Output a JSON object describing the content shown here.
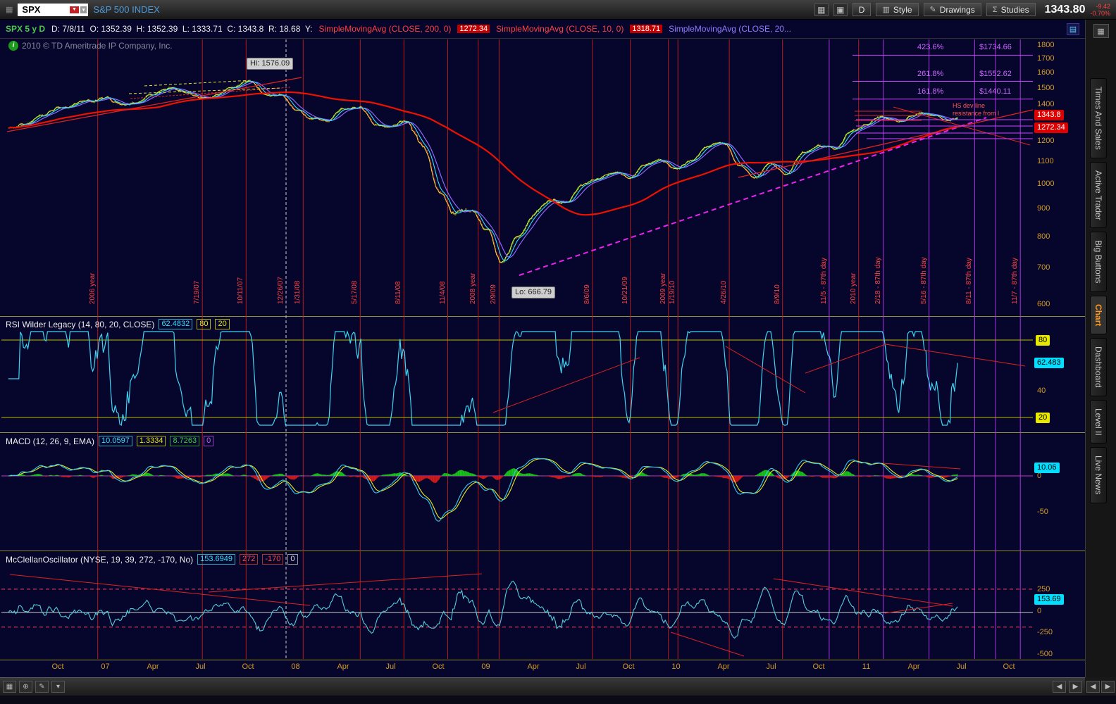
{
  "title_bar": {
    "symbol": "SPX",
    "title": "S&P 500 INDEX",
    "buttons": {
      "d": "D",
      "style": "Style",
      "drawings": "Drawings",
      "studies": "Studies"
    },
    "price": "1343.80",
    "change": "-9.42",
    "change_pct": "-0.70%"
  },
  "info_bar": {
    "symbol_period": "SPX 5 y D",
    "ohlc": "D: 7/8/11  O: 1352.39  H: 1352.39  L: 1333.71  C: 1343.8  R: 18.68  Y:"
  },
  "watermark": "2010 © TD Ameritrade IP Company, Inc.",
  "annotations": {
    "note1": "HS dev line",
    "note2": "resistance from l"
  },
  "sidebar": {
    "tabs": [
      "Times And Sales",
      "Active Trader",
      "Big Buttons",
      "Chart",
      "Dashboard",
      "Level II",
      "Live News"
    ],
    "active_tab": "Chart"
  },
  "chart_data": {
    "type": "candlestick",
    "symbol": "SPX",
    "timeframe": "5 y D",
    "y_axis": {
      "scale": "log",
      "ticks": [
        1800,
        1700,
        1600,
        1500,
        1400,
        1200,
        1100,
        1000,
        900,
        800,
        700,
        600
      ]
    },
    "x_axis": {
      "labels": [
        "Oct",
        "07",
        "Apr",
        "Jul",
        "Oct",
        "08",
        "Apr",
        "Jul",
        "Oct",
        "09",
        "Apr",
        "Jul",
        "Oct",
        "10",
        "Apr",
        "Jul",
        "Oct",
        "11",
        "Apr",
        "Jul",
        "Oct"
      ]
    },
    "price": {
      "t_start": 2006.542,
      "monthly_closes": [
        1276,
        1303,
        1335,
        1377,
        1400,
        1418,
        1438,
        1406,
        1420,
        1482,
        1530,
        1503,
        1455,
        1473,
        1526,
        1555,
        1481,
        1468,
        1378,
        1330,
        1322,
        1385,
        1400,
        1280,
        1267,
        1282,
        1166,
        968,
        896,
        903,
        825,
        710,
        797,
        872,
        919,
        919,
        987,
        1020,
        1057,
        1036,
        1095,
        1115,
        1073,
        1104,
        1169,
        1186,
        1089,
        1030,
        1101,
        1049,
        1141,
        1183,
        1180,
        1257,
        1286,
        1327,
        1325,
        1363,
        1345,
        1320,
        1344
      ],
      "hi": 1576.09,
      "hi_label": "Hi: 1576.09",
      "lo": 666.79,
      "lo_label": "Lo: 666.79",
      "last": 1343.8,
      "last_label": "1343.8"
    },
    "events": [
      {
        "t": 2007.0,
        "label": "2006 year",
        "c": "red"
      },
      {
        "t": 2007.55,
        "label": "7/19/07",
        "c": "red"
      },
      {
        "t": 2007.78,
        "label": "10/11/07",
        "c": "red"
      },
      {
        "t": 2007.99,
        "label": "12/26/07",
        "c": "white"
      },
      {
        "t": 2008.08,
        "label": "1/31/08",
        "c": "red"
      },
      {
        "t": 2008.38,
        "label": "5/17/08",
        "c": "red"
      },
      {
        "t": 2008.61,
        "label": "8/11/08",
        "c": "red"
      },
      {
        "t": 2008.84,
        "label": "11/4/08",
        "c": "red"
      },
      {
        "t": 2009.0,
        "label": "2008 year",
        "c": "red"
      },
      {
        "t": 2009.11,
        "label": "2/9/09",
        "c": "red"
      },
      {
        "t": 2009.6,
        "label": "8/6/09",
        "c": "red"
      },
      {
        "t": 2009.8,
        "label": "10/21/09",
        "c": "red"
      },
      {
        "t": 2010.0,
        "label": "2009 year",
        "c": "red"
      },
      {
        "t": 2010.05,
        "label": "1/19/10",
        "c": "red"
      },
      {
        "t": 2010.32,
        "label": "4/26/10",
        "c": "red"
      },
      {
        "t": 2010.6,
        "label": "8/9/10",
        "c": "red"
      },
      {
        "t": 2010.845,
        "label": "11/5 - 87th day",
        "c": "purple"
      },
      {
        "t": 2011.0,
        "label": "2010 year",
        "c": "red"
      },
      {
        "t": 2011.13,
        "label": "2/18 - 87th day",
        "c": "purple"
      },
      {
        "t": 2011.37,
        "label": "5/16 - 87th day",
        "c": "purple"
      },
      {
        "t": 2011.61,
        "label": "8/11 - 87th day",
        "c": "purple"
      },
      {
        "t": 2011.72,
        "label": "",
        "c": "purple"
      },
      {
        "t": 2011.85,
        "label": "11/7 - 87th day",
        "c": "purple"
      }
    ],
    "fib_extensions": [
      {
        "pct": "423.6%",
        "price": "$1734.66",
        "value": 1734.66
      },
      {
        "pct": "261.8%",
        "price": "$1552.62",
        "value": 1552.62
      },
      {
        "pct": "161.8%",
        "price": "$1440.11",
        "value": 1440.11
      }
    ],
    "studies": {
      "sma200": {
        "label": "SimpleMovingAvg (CLOSE, 200, 0)",
        "value": "1272.34",
        "period": 200
      },
      "sma10": {
        "label": "SimpleMovingAvg (CLOSE, 10, 0)",
        "value": "1318.71",
        "period": 10
      },
      "sma20": {
        "label": "SimpleMovingAvg (CLOSE, 20...",
        "period": 20
      },
      "rsi": {
        "title": "RSI Wilder Legacy (14, 80, 20, CLOSE)",
        "value": "62.4832",
        "overbought": "80",
        "oversold": "20",
        "levels": [
          80,
          20
        ],
        "axis_labels": [
          "80",
          "62.483",
          "40",
          "20"
        ]
      },
      "macd": {
        "title": "MACD (12, 26, 9, EMA)",
        "value": "10.0597",
        "avg": "1.3334",
        "diff": "8.7263",
        "zero": "0",
        "axis_labels": [
          "10.06",
          "0",
          "-50"
        ]
      },
      "mcclellan": {
        "title": "McClellanOscillator (NYSE, 19, 39, 272, -170, No)",
        "value": "153.6949",
        "ob": "272",
        "os": "-170",
        "zero": "0",
        "ob_level": 272,
        "os_level": -170,
        "axis_labels": [
          "250",
          "153.69",
          "0",
          "-250",
          "-500"
        ]
      }
    }
  }
}
